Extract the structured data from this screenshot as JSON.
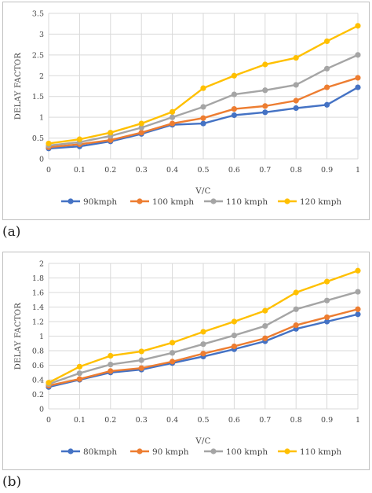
{
  "panels": [
    {
      "label": "(a)"
    },
    {
      "label": "(b)"
    }
  ],
  "chart_data": [
    {
      "type": "line",
      "xlabel": "V/C",
      "ylabel": "DELAY FACTOR",
      "x": [
        0,
        0.1,
        0.2,
        0.3,
        0.4,
        0.5,
        0.6,
        0.7,
        0.8,
        0.9,
        1
      ],
      "xticks": [
        "0",
        "0.1",
        "0.2",
        "0.3",
        "0.4",
        "0.5",
        "0.6",
        "0.7",
        "0.8",
        "0.9",
        "1"
      ],
      "ylim": [
        0,
        3.5
      ],
      "yticks": [
        0,
        0.5,
        1,
        1.5,
        2,
        2.5,
        3,
        3.5
      ],
      "ytick_labels": [
        "0",
        "0.5",
        "1",
        "1.5",
        "2",
        "2.5",
        "3",
        "3.5"
      ],
      "grid": true,
      "legend": "bottom",
      "series": [
        {
          "name": "90kmph",
          "color": "#4472c4",
          "values": [
            0.25,
            0.3,
            0.42,
            0.6,
            0.82,
            0.85,
            1.05,
            1.12,
            1.22,
            1.3,
            1.72
          ]
        },
        {
          "name": "100 kmph",
          "color": "#ed7d31",
          "values": [
            0.28,
            0.35,
            0.45,
            0.63,
            0.85,
            0.98,
            1.2,
            1.27,
            1.4,
            1.72,
            1.95
          ]
        },
        {
          "name": "110 kmph",
          "color": "#a5a5a5",
          "values": [
            0.32,
            0.4,
            0.55,
            0.75,
            1.0,
            1.25,
            1.55,
            1.65,
            1.78,
            2.17,
            2.5
          ]
        },
        {
          "name": "120 kmph",
          "color": "#ffc000",
          "values": [
            0.37,
            0.47,
            0.63,
            0.85,
            1.13,
            1.7,
            2.0,
            2.27,
            2.43,
            2.83,
            3.2
          ]
        }
      ]
    },
    {
      "type": "line",
      "xlabel": "V/C",
      "ylabel": "DELAY FACTOR",
      "x": [
        0,
        0.1,
        0.2,
        0.3,
        0.4,
        0.5,
        0.6,
        0.7,
        0.8,
        0.9,
        1
      ],
      "xticks": [
        "0",
        "0.1",
        "0.2",
        "0.3",
        "0.4",
        "0.5",
        "0.6",
        "0.7",
        "0.8",
        "0.9",
        "1"
      ],
      "ylim": [
        0,
        2
      ],
      "yticks": [
        0,
        0.2,
        0.4,
        0.6,
        0.8,
        1,
        1.2,
        1.4,
        1.6,
        1.8,
        2
      ],
      "ytick_labels": [
        "0",
        "0.2",
        "0.4",
        "0.6",
        "0.8",
        "1",
        "1.2",
        "1.4",
        "1.6",
        "1.8",
        "2"
      ],
      "grid": true,
      "legend": "bottom",
      "series": [
        {
          "name": "80kmph",
          "color": "#4472c4",
          "values": [
            0.3,
            0.4,
            0.5,
            0.54,
            0.63,
            0.72,
            0.82,
            0.93,
            1.1,
            1.2,
            1.3
          ]
        },
        {
          "name": "90 kmph",
          "color": "#ed7d31",
          "values": [
            0.32,
            0.41,
            0.52,
            0.56,
            0.65,
            0.76,
            0.86,
            0.97,
            1.15,
            1.26,
            1.37
          ]
        },
        {
          "name": "100 kmph",
          "color": "#a5a5a5",
          "values": [
            0.34,
            0.49,
            0.61,
            0.67,
            0.77,
            0.89,
            1.01,
            1.14,
            1.37,
            1.49,
            1.61
          ]
        },
        {
          "name": "110 kmph",
          "color": "#ffc000",
          "values": [
            0.36,
            0.58,
            0.73,
            0.79,
            0.91,
            1.06,
            1.2,
            1.35,
            1.6,
            1.75,
            1.9
          ]
        }
      ]
    }
  ]
}
